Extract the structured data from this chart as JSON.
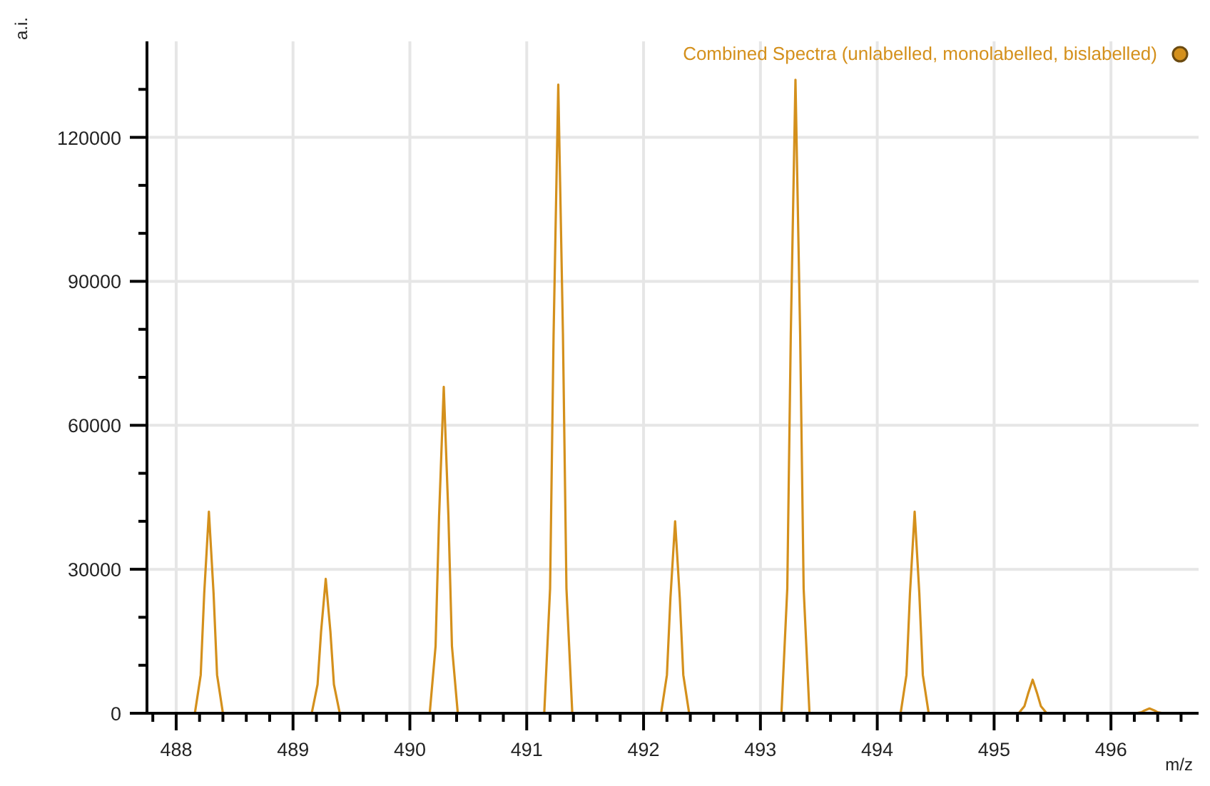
{
  "chart_data": {
    "type": "line",
    "xlabel": "m/z",
    "ylabel": "a.i.",
    "xlim": [
      487.75,
      496.75
    ],
    "ylim": [
      0,
      140000
    ],
    "xticks": [
      {
        "value": 487.8,
        "label": null
      },
      488,
      {
        "value": 488.2,
        "label": null
      },
      {
        "value": 488.4,
        "label": null
      },
      {
        "value": 488.6,
        "label": null
      },
      {
        "value": 488.8,
        "label": null
      },
      489,
      {
        "value": 489.2,
        "label": null
      },
      {
        "value": 489.4,
        "label": null
      },
      {
        "value": 489.6,
        "label": null
      },
      {
        "value": 489.8,
        "label": null
      },
      490,
      {
        "value": 490.2,
        "label": null
      },
      {
        "value": 490.4,
        "label": null
      },
      {
        "value": 490.6,
        "label": null
      },
      {
        "value": 490.8,
        "label": null
      },
      491,
      {
        "value": 491.2,
        "label": null
      },
      {
        "value": 491.4,
        "label": null
      },
      {
        "value": 491.6,
        "label": null
      },
      {
        "value": 491.8,
        "label": null
      },
      492,
      {
        "value": 492.2,
        "label": null
      },
      {
        "value": 492.4,
        "label": null
      },
      {
        "value": 492.6,
        "label": null
      },
      {
        "value": 492.8,
        "label": null
      },
      493,
      {
        "value": 493.2,
        "label": null
      },
      {
        "value": 493.4,
        "label": null
      },
      {
        "value": 493.6,
        "label": null
      },
      {
        "value": 493.8,
        "label": null
      },
      494,
      {
        "value": 494.2,
        "label": null
      },
      {
        "value": 494.4,
        "label": null
      },
      {
        "value": 494.6,
        "label": null
      },
      {
        "value": 494.8,
        "label": null
      },
      495,
      {
        "value": 495.2,
        "label": null
      },
      {
        "value": 495.4,
        "label": null
      },
      {
        "value": 495.6,
        "label": null
      },
      {
        "value": 495.8,
        "label": null
      },
      496,
      {
        "value": 496.2,
        "label": null
      },
      {
        "value": 496.4,
        "label": null
      },
      {
        "value": 496.6,
        "label": null
      }
    ],
    "yticks": [
      0,
      {
        "value": 10000,
        "label": null
      },
      {
        "value": 20000,
        "label": null
      },
      30000,
      {
        "value": 40000,
        "label": null
      },
      {
        "value": 50000,
        "label": null
      },
      60000,
      {
        "value": 70000,
        "label": null
      },
      {
        "value": 80000,
        "label": null
      },
      90000,
      {
        "value": 100000,
        "label": null
      },
      {
        "value": 110000,
        "label": null
      },
      120000,
      {
        "value": 130000,
        "label": null
      }
    ],
    "grid": true,
    "legend": "top right",
    "marker": "none",
    "line_style": "solid",
    "series": [
      {
        "name": "Combined Spectra (unlabelled, monolabelled, bislabelled)",
        "color": "#d4901c",
        "x": [
          487.8,
          488.16,
          488.21,
          488.24,
          488.28,
          488.32,
          488.35,
          488.4,
          489.16,
          489.21,
          489.24,
          489.28,
          489.32,
          489.35,
          489.4,
          490.17,
          490.22,
          490.25,
          490.29,
          490.33,
          490.36,
          490.41,
          491.15,
          491.2,
          491.23,
          491.27,
          491.31,
          491.34,
          491.39,
          492.15,
          492.2,
          492.23,
          492.27,
          492.31,
          492.34,
          492.39,
          493.18,
          493.23,
          493.26,
          493.3,
          493.34,
          493.37,
          493.42,
          494.2,
          494.25,
          494.28,
          494.32,
          494.36,
          494.39,
          494.44,
          495.21,
          495.26,
          495.29,
          495.33,
          495.37,
          495.4,
          495.45,
          496.21,
          496.26,
          496.29,
          496.33,
          496.37,
          496.4,
          496.45,
          496.75
        ],
        "values": [
          0,
          0,
          8000,
          25000,
          42000,
          25000,
          8000,
          0,
          0,
          6000,
          17000,
          28000,
          17000,
          6000,
          0,
          0,
          14000,
          41000,
          68000,
          41000,
          14000,
          0,
          0,
          26000,
          79000,
          131000,
          79000,
          26000,
          0,
          0,
          8000,
          24000,
          40000,
          24000,
          8000,
          0,
          0,
          26000,
          79000,
          132000,
          79000,
          26000,
          0,
          0,
          8000,
          25000,
          42000,
          25000,
          8000,
          0,
          0,
          1500,
          4000,
          7000,
          4000,
          1500,
          0,
          0,
          200,
          600,
          1000,
          600,
          200,
          0,
          0
        ]
      }
    ]
  }
}
